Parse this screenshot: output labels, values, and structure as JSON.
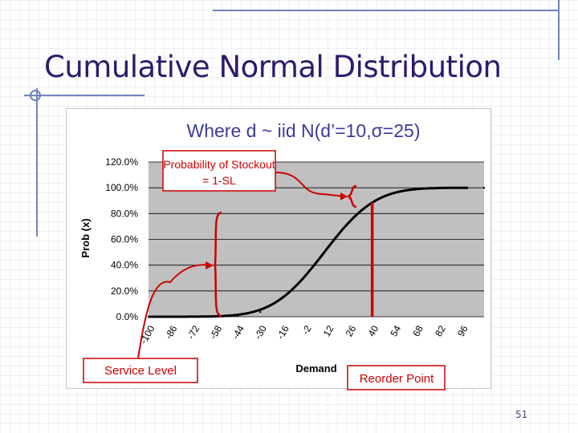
{
  "slide": {
    "title": "Cumulative Normal Distribution",
    "page_number": "51"
  },
  "chart_data": {
    "type": "line",
    "title": "Where d ~ iid N(d’=10,σ=25)",
    "xlabel": "Demand",
    "ylabel": "Prob (x)",
    "x_ticks": [
      "-100",
      "-86",
      "-72",
      "-58",
      "-44",
      "-30",
      "-16",
      "-2",
      "12",
      "26",
      "40",
      "54",
      "68",
      "82",
      "96"
    ],
    "y_ticks": [
      "0.0%",
      "20.0%",
      "40.0%",
      "60.0%",
      "80.0%",
      "100.0%",
      "120.0%"
    ],
    "xlim": [
      -100,
      110
    ],
    "ylim": [
      0,
      120
    ],
    "distribution": {
      "mean": 10,
      "sd": 25
    },
    "series": [
      {
        "x": [
          -100,
          -86,
          -72,
          -58,
          -44,
          -30,
          -16,
          -2,
          12,
          26,
          40,
          54,
          68,
          82,
          96,
          110
        ],
        "y": [
          0.0,
          0.0,
          0.0,
          0.1,
          0.8,
          3.6,
          14.9,
          31.6,
          53.2,
          73.8,
          88.5,
          96.0,
          99.0,
          99.8,
          100.0,
          100.0
        ]
      }
    ],
    "grid": true,
    "annotations": [
      {
        "text": "Probability of Stockout = 1-SL"
      },
      {
        "text": "Service Level"
      },
      {
        "text": "Reorder Point",
        "x": 40
      }
    ],
    "colors": {
      "plot_bg": "#c0c0c0",
      "line": "#000000",
      "annotation": "#cc0000",
      "title": "#3b3b9a"
    }
  }
}
